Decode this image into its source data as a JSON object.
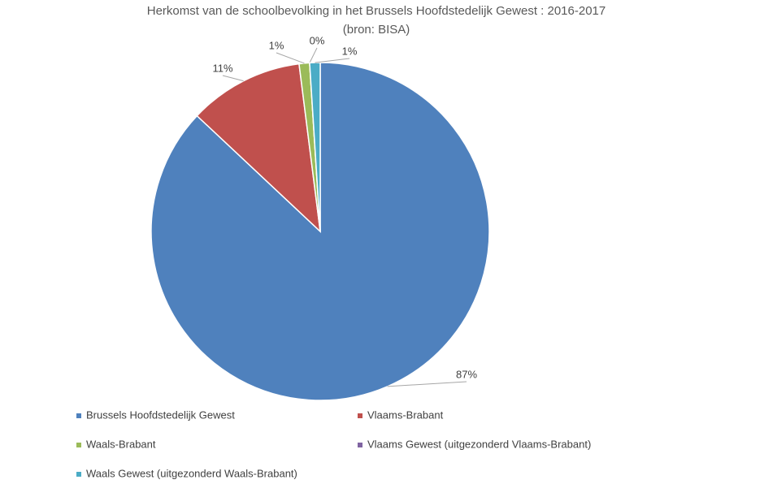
{
  "chart_data": {
    "type": "pie",
    "title": "Herkomst van de schoolbevolking in het Brussels Hoofdstedelijk Gewest : 2016-2017",
    "subtitle": "(bron: BISA)",
    "categories": [
      "Brussels Hoofdstedelijk Gewest",
      "Vlaams-Brabant",
      "Waals-Brabant",
      "Vlaams Gewest (uitgezonderd Vlaams-Brabant)",
      "Waals Gewest (uitgezonderd Waals-Brabant)"
    ],
    "values": [
      87,
      11,
      1,
      0,
      1
    ],
    "value_labels": [
      "87%",
      "11%",
      "1%",
      "0%",
      "1%"
    ],
    "colors": [
      "#4f81bd",
      "#c0504d",
      "#9bbb59",
      "#8064a2",
      "#4bacc6"
    ]
  }
}
